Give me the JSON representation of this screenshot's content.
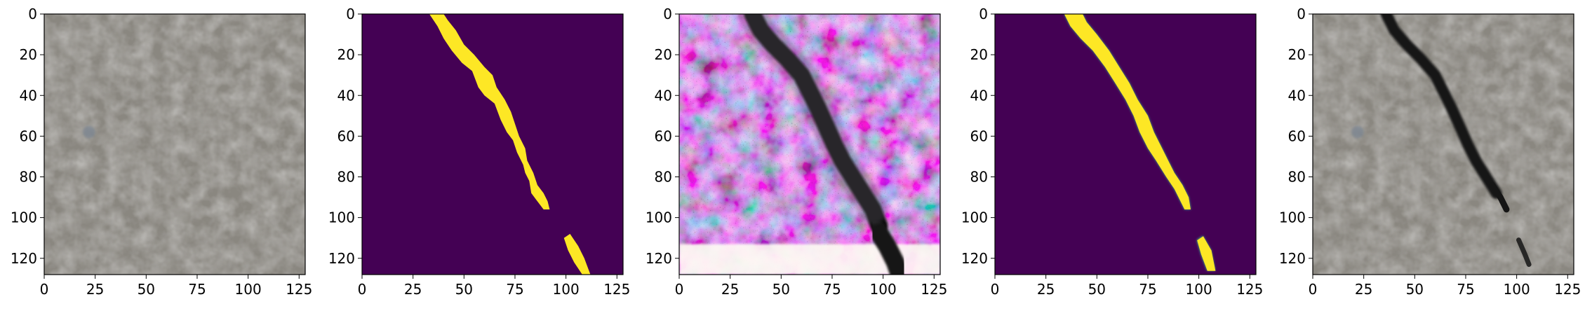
{
  "figure": {
    "panels": [
      {
        "name": "input-image",
        "kind": "photo-plain"
      },
      {
        "name": "ground-truth-mask",
        "kind": "mask-sharp"
      },
      {
        "name": "generated-image",
        "kind": "photo-noisy"
      },
      {
        "name": "predicted-mask",
        "kind": "mask-smooth"
      },
      {
        "name": "overlay-image",
        "kind": "photo-crack"
      }
    ],
    "x_ticks": [
      "0",
      "25",
      "50",
      "75",
      "100",
      "125"
    ],
    "y_ticks": [
      "0",
      "20",
      "40",
      "60",
      "80",
      "100",
      "120"
    ],
    "x_range": [
      0,
      128
    ],
    "y_range": [
      0,
      128
    ],
    "colors": {
      "mask_background": "#440154",
      "mask_foreground": "#fde725",
      "pavement_base": "#8a8780",
      "crack": "#151515"
    }
  }
}
